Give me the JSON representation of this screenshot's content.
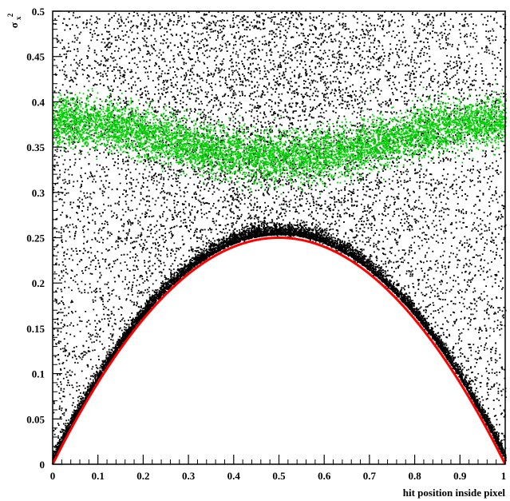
{
  "chart_data": {
    "type": "scatter",
    "title": "",
    "xlabel": "hit position inside pixel",
    "ylabel": {
      "base": "σ",
      "sub": "x",
      "sup": "2"
    },
    "xlim": [
      0,
      1
    ],
    "ylim": [
      0,
      0.5
    ],
    "x_ticks": [
      0,
      0.1,
      0.2,
      0.3,
      0.4,
      0.5,
      0.6,
      0.7,
      0.8,
      0.9,
      1
    ],
    "x_tick_labels": [
      "0",
      "0.1",
      "0.2",
      "0.3",
      "0.4",
      "0.5",
      "0.6",
      "0.7",
      "0.8",
      "0.9",
      "1"
    ],
    "y_ticks": [
      0,
      0.05,
      0.1,
      0.15,
      0.2,
      0.25,
      0.3,
      0.35,
      0.4,
      0.45,
      0.5
    ],
    "y_tick_labels": [
      "0",
      "0.05",
      "0.1",
      "0.15",
      "0.2",
      "0.25",
      "0.3",
      "0.35",
      "0.4",
      "0.45",
      "0.5"
    ],
    "grid": false,
    "legend": "none",
    "series": [
      {
        "kind": "scatter",
        "color": "#000000",
        "region": "y between x(1-x) and 0.5, densest just above the boundary curve",
        "sample_points": [
          {
            "x": 0.05,
            "y": 0.06
          },
          {
            "x": 0.1,
            "y": 0.12
          },
          {
            "x": 0.2,
            "y": 0.19
          },
          {
            "x": 0.3,
            "y": 0.23
          },
          {
            "x": 0.4,
            "y": 0.26
          },
          {
            "x": 0.5,
            "y": 0.265
          },
          {
            "x": 0.6,
            "y": 0.26
          },
          {
            "x": 0.7,
            "y": 0.23
          },
          {
            "x": 0.8,
            "y": 0.19
          },
          {
            "x": 0.9,
            "y": 0.12
          },
          {
            "x": 0.95,
            "y": 0.06
          },
          {
            "x": 0.5,
            "y": 0.45
          },
          {
            "x": 0.2,
            "y": 0.47
          },
          {
            "x": 0.8,
            "y": 0.46
          },
          {
            "x": 0.02,
            "y": 0.3
          }
        ]
      },
      {
        "kind": "scatter",
        "color": "#00d000",
        "region": "concentrated around y 0.3-0.42, above the black band",
        "sample_points": [
          {
            "x": 0.05,
            "y": 0.36
          },
          {
            "x": 0.15,
            "y": 0.38
          },
          {
            "x": 0.25,
            "y": 0.35
          },
          {
            "x": 0.35,
            "y": 0.33
          },
          {
            "x": 0.45,
            "y": 0.31
          },
          {
            "x": 0.55,
            "y": 0.31
          },
          {
            "x": 0.65,
            "y": 0.33
          },
          {
            "x": 0.75,
            "y": 0.35
          },
          {
            "x": 0.85,
            "y": 0.38
          },
          {
            "x": 0.95,
            "y": 0.36
          },
          {
            "x": 0.3,
            "y": 0.41
          },
          {
            "x": 0.7,
            "y": 0.41
          }
        ]
      },
      {
        "kind": "line",
        "color": "#ff0000",
        "function": "y = x(1-x)",
        "x": [
          0,
          0.1,
          0.2,
          0.3,
          0.4,
          0.5,
          0.6,
          0.7,
          0.8,
          0.9,
          1
        ],
        "y": [
          0,
          0.09,
          0.16,
          0.21,
          0.24,
          0.25,
          0.24,
          0.21,
          0.16,
          0.09,
          0
        ]
      }
    ]
  }
}
